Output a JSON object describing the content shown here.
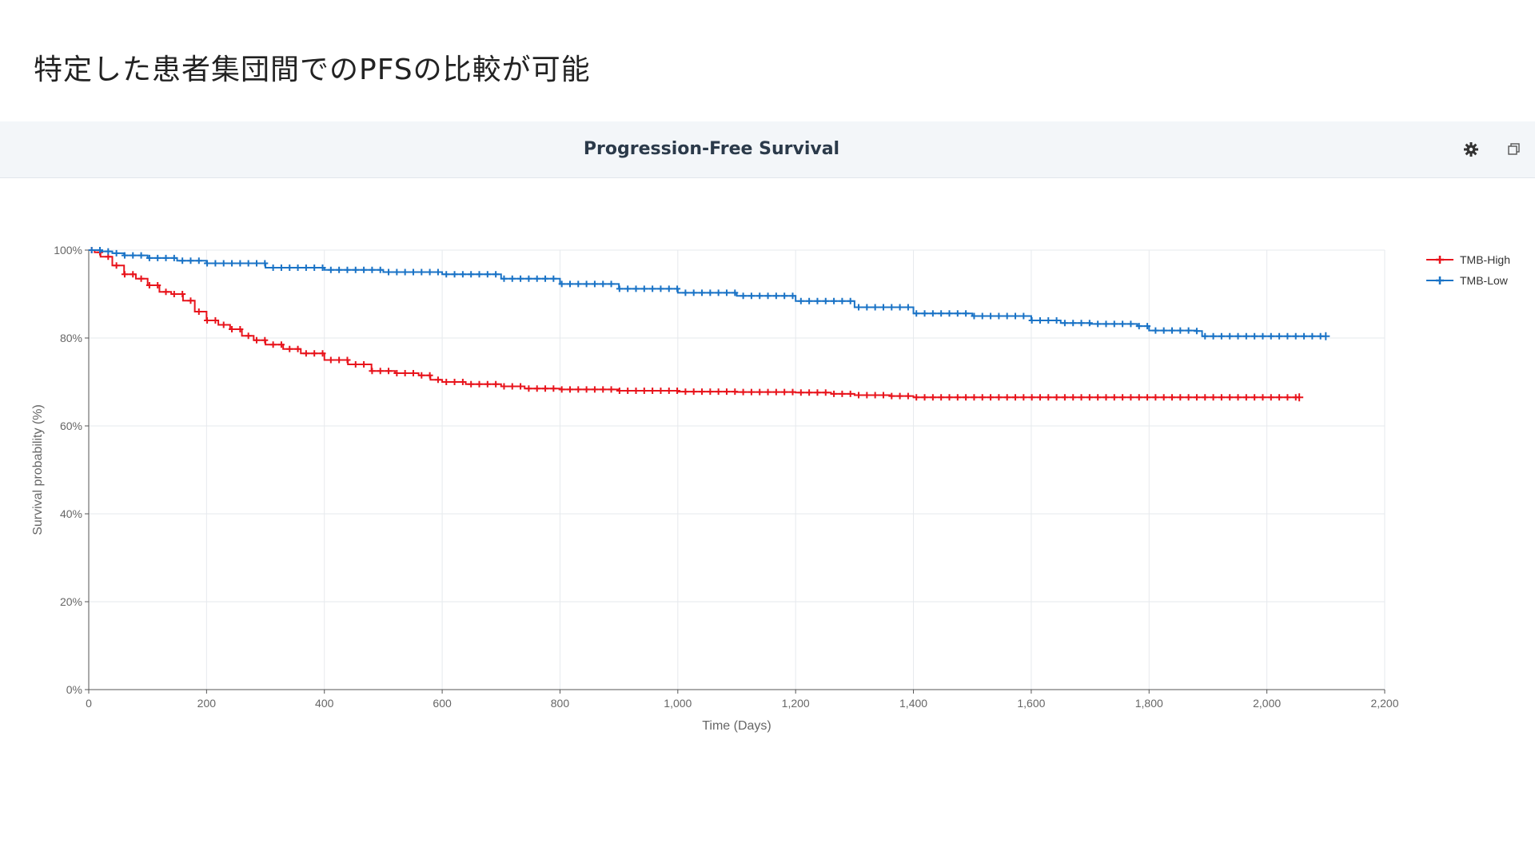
{
  "slide": {
    "title": "特定した患者集団間でのPFSの比較が可能"
  },
  "panel": {
    "title": "Progression-Free Survival",
    "settings_icon": "gear-icon",
    "restore_icon": "window-restore-icon"
  },
  "chart_data": {
    "type": "line",
    "title": "Progression-Free Survival",
    "xlabel": "Time (Days)",
    "ylabel": "Survival probability (%)",
    "xlim": [
      0,
      2200
    ],
    "ylim": [
      0,
      100
    ],
    "xticks": [
      0,
      200,
      400,
      600,
      800,
      1000,
      1200,
      1400,
      1600,
      1800,
      2000,
      2200
    ],
    "xtick_labels": [
      "0",
      "200",
      "400",
      "600",
      "800",
      "1,000",
      "1,200",
      "1,400",
      "1,600",
      "1,800",
      "2,000",
      "2,200"
    ],
    "yticks": [
      0,
      20,
      40,
      60,
      80,
      100
    ],
    "ytick_labels": [
      "0%",
      "20%",
      "40%",
      "60%",
      "80%",
      "100%"
    ],
    "grid": true,
    "legend_position": "top-right",
    "series": [
      {
        "name": "TMB-High",
        "color": "#e8141c",
        "x": [
          0,
          10,
          20,
          40,
          60,
          80,
          100,
          120,
          140,
          160,
          180,
          200,
          220,
          240,
          260,
          280,
          300,
          330,
          360,
          400,
          440,
          480,
          520,
          560,
          580,
          600,
          640,
          700,
          740,
          800,
          900,
          1000,
          1100,
          1200,
          1260,
          1300,
          1360,
          1400,
          1500,
          1600,
          1700,
          1800,
          1900,
          2000,
          2055
        ],
        "y": [
          100,
          99.5,
          98.5,
          96.5,
          94.5,
          93.5,
          92,
          90.5,
          90,
          88.5,
          86,
          84,
          83,
          82,
          80.5,
          79.5,
          78.5,
          77.5,
          76.5,
          75,
          74,
          72.5,
          72,
          71.5,
          70.5,
          70,
          69.5,
          69,
          68.5,
          68.3,
          68,
          67.8,
          67.7,
          67.6,
          67.3,
          67,
          66.8,
          66.5,
          66.5,
          66.5,
          66.5,
          66.5,
          66.5,
          66.5,
          66.5
        ]
      },
      {
        "name": "TMB-Low",
        "color": "#1a73c6",
        "x": [
          0,
          20,
          40,
          60,
          100,
          150,
          200,
          300,
          400,
          500,
          600,
          700,
          800,
          900,
          1000,
          1100,
          1200,
          1300,
          1400,
          1500,
          1600,
          1650,
          1700,
          1780,
          1800,
          1880,
          1890,
          2000,
          2100
        ],
        "y": [
          100,
          99.7,
          99.3,
          98.8,
          98.2,
          97.6,
          97,
          96,
          95.5,
          95,
          94.5,
          93.5,
          92.3,
          91.2,
          90.3,
          89.6,
          88.4,
          87,
          85.6,
          85,
          84,
          83.4,
          83.2,
          82.7,
          81.7,
          81.6,
          80.4,
          80.4,
          80.4
        ]
      }
    ]
  }
}
